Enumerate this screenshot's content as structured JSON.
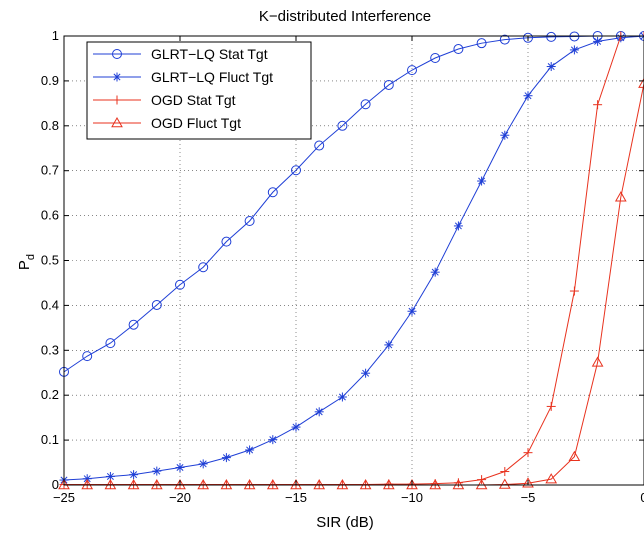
{
  "chart_data": {
    "type": "line",
    "title": "K−distributed Interference",
    "xlabel": "SIR (dB)",
    "ylabel": "P",
    "ylabel_subscript": "d",
    "xlim": [
      -25,
      0
    ],
    "ylim": [
      0,
      1
    ],
    "xticks": [
      -25,
      -20,
      -15,
      -10,
      -5,
      0
    ],
    "xtick_labels": [
      "−25",
      "−20",
      "−15",
      "−10",
      "−5",
      "0"
    ],
    "yticks": [
      0,
      0.1,
      0.2,
      0.3,
      0.4,
      0.5,
      0.6,
      0.7,
      0.8,
      0.9,
      1
    ],
    "ytick_labels": [
      "0",
      "0.1",
      "0.2",
      "0.3",
      "0.4",
      "0.5",
      "0.6",
      "0.7",
      "0.8",
      "0.9",
      "1"
    ],
    "grid": true,
    "legend_position": "top-left",
    "x": [
      -25,
      -24,
      -23,
      -22,
      -21,
      -20,
      -19,
      -18,
      -17,
      -16,
      -15,
      -14,
      -13,
      -12,
      -11,
      -10,
      -9,
      -8,
      -7,
      -6,
      -5,
      -4,
      -3,
      -2,
      -1,
      0
    ],
    "series": [
      {
        "name": "GLRT−LQ Stat Tgt",
        "color": "#1f3fd6",
        "marker": "circle",
        "values": [
          0.252,
          0.287,
          0.316,
          0.357,
          0.401,
          0.446,
          0.485,
          0.542,
          0.588,
          0.652,
          0.701,
          0.756,
          0.8,
          0.848,
          0.891,
          0.924,
          0.951,
          0.971,
          0.984,
          0.992,
          0.996,
          0.998,
          0.999,
          1.0,
          1.0,
          1.0
        ]
      },
      {
        "name": "GLRT−LQ Fluct Tgt",
        "color": "#1f3fd6",
        "marker": "star",
        "values": [
          0.011,
          0.014,
          0.019,
          0.023,
          0.031,
          0.039,
          0.047,
          0.061,
          0.078,
          0.101,
          0.129,
          0.163,
          0.196,
          0.249,
          0.312,
          0.387,
          0.474,
          0.577,
          0.677,
          0.779,
          0.867,
          0.932,
          0.969,
          0.988,
          0.996,
          1.0
        ]
      },
      {
        "name": "OGD Stat Tgt",
        "color": "#e8321e",
        "marker": "plus",
        "values": [
          0.001,
          0.001,
          0.001,
          0.001,
          0.001,
          0.001,
          0.001,
          0.001,
          0.001,
          0.001,
          0.001,
          0.001,
          0.001,
          0.001,
          0.002,
          0.002,
          0.003,
          0.005,
          0.012,
          0.03,
          0.072,
          0.175,
          0.432,
          0.847,
          1.0,
          1.0
        ]
      },
      {
        "name": "OGD Fluct Tgt",
        "color": "#e8321e",
        "marker": "triangle",
        "values": [
          0.0,
          0.0,
          0.0,
          0.0,
          0.0,
          0.0,
          0.0,
          0.0,
          0.0,
          0.0,
          0.0,
          0.0,
          0.0,
          0.0,
          0.0,
          0.0,
          0.0,
          0.0,
          0.0,
          0.001,
          0.004,
          0.013,
          0.063,
          0.273,
          0.641,
          0.894
        ]
      }
    ]
  }
}
